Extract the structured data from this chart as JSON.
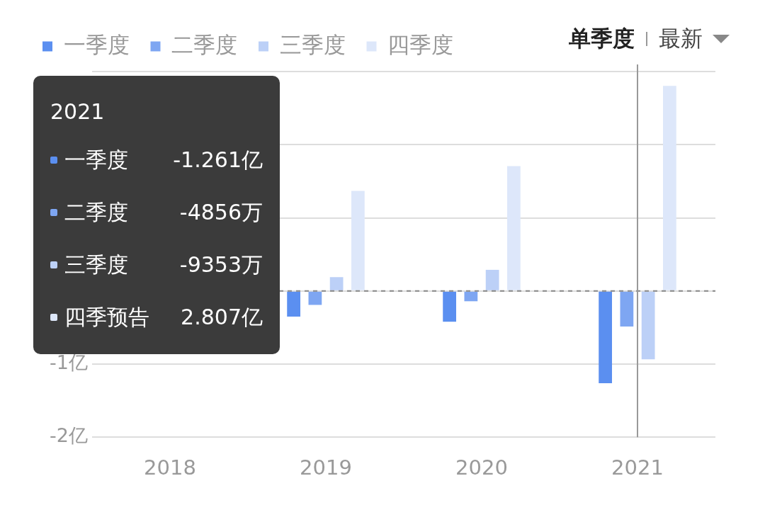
{
  "chart_data": {
    "type": "bar",
    "categories": [
      "2018",
      "2019",
      "2020",
      "2021"
    ],
    "series": [
      {
        "name": "一季度",
        "color": "#5b8ff0",
        "values": [
          null,
          -0.35,
          -0.42,
          -1.261
        ]
      },
      {
        "name": "二季度",
        "color": "#7ea6f2",
        "values": [
          null,
          -0.19,
          -0.14,
          -0.4856
        ]
      },
      {
        "name": "三季度",
        "color": "#bcd0f7",
        "values": [
          null,
          0.19,
          0.29,
          -0.9353
        ]
      },
      {
        "name": "四季度",
        "color": "#dde7fa",
        "values": [
          null,
          1.37,
          1.71,
          2.807
        ]
      }
    ],
    "ylim": [
      -2,
      3.1
    ],
    "yticks": [
      {
        "value": -2,
        "label": "-2亿"
      },
      {
        "value": -1,
        "label": "-1亿"
      },
      {
        "value": 0,
        "label": null
      },
      {
        "value": 1,
        "label": null
      },
      {
        "value": 2,
        "label": null
      },
      {
        "value": 3,
        "label": null
      }
    ],
    "grid": "y",
    "legend": "top left",
    "ref_lines": [
      {
        "axis": "y",
        "value": 0,
        "color": "#888888",
        "line_style": "dashed"
      },
      {
        "axis": "x",
        "value": "2021",
        "color": "#999999",
        "line_style": "solid"
      }
    ],
    "annotations": [
      "2021",
      "一季度",
      "-1.261亿",
      "二季度",
      "-4856万",
      "三季度",
      "-9353万",
      "四季预告",
      "2.807亿",
      "单季度",
      "最新"
    ]
  }
}
